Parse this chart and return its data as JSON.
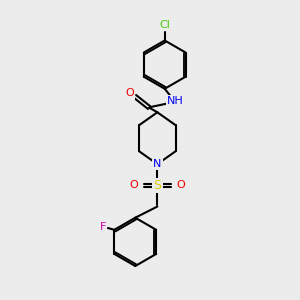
{
  "background_color": "#ececec",
  "atom_colors": {
    "C": "#000000",
    "N": "#0000ee",
    "O": "#ee0000",
    "S": "#ddcc00",
    "F": "#cc00aa",
    "Cl": "#44cc00",
    "H": "#44aaaa"
  },
  "bond_color": "#000000",
  "bond_width": 1.5,
  "figsize": [
    3.0,
    3.0
  ],
  "dpi": 100
}
